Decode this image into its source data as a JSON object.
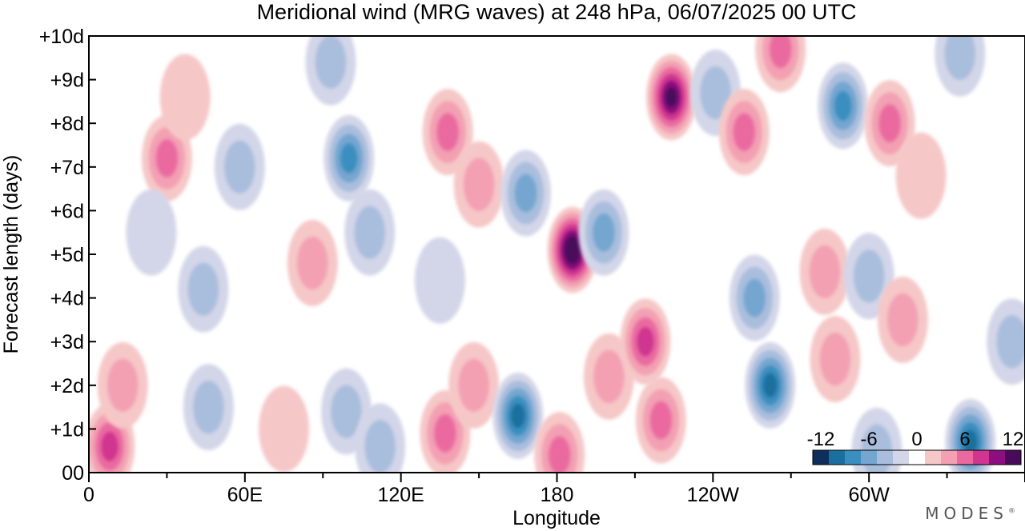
{
  "chart_data": {
    "type": "heatmap",
    "title": "Meridional wind (MRG waves) at  248 hPa,  06/07/2025  00 UTC",
    "xlabel": "Longitude",
    "ylabel": "Forecast length (days)",
    "x_ticks": [
      "0",
      "60E",
      "120E",
      "180",
      "120W",
      "60W"
    ],
    "x_tick_values": [
      0,
      60,
      120,
      180,
      240,
      300
    ],
    "xlim": [
      0,
      360
    ],
    "y_ticks": [
      "00",
      "+1d",
      "+2d",
      "+3d",
      "+4d",
      "+5d",
      "+6d",
      "+7d",
      "+8d",
      "+9d",
      "+10d"
    ],
    "y_tick_values": [
      0,
      1,
      2,
      3,
      4,
      5,
      6,
      7,
      8,
      9,
      10
    ],
    "ylim": [
      0,
      10
    ],
    "colorbar": {
      "tick_labels": [
        "-12",
        "-6",
        "0",
        "6",
        "12"
      ],
      "tick_values": [
        -12,
        -6,
        0,
        6,
        12
      ],
      "levels": [
        -12,
        -10,
        -8,
        -6,
        -4,
        -2,
        0,
        2,
        4,
        6,
        8,
        10,
        12
      ],
      "colors": [
        "#0e2f5c",
        "#1b6f9e",
        "#3a8fc0",
        "#74a6d0",
        "#a9bedd",
        "#d3d6e8",
        "#ffffff",
        "#f6c7c7",
        "#f3a0b3",
        "#ea6aa0",
        "#d03590",
        "#8d0f7f",
        "#4a0a5c"
      ]
    },
    "features": [
      {
        "lon": 8,
        "day": 0.6,
        "value": 7
      },
      {
        "lon": 13,
        "day": 2.0,
        "value": 4
      },
      {
        "lon": 30,
        "day": 7.2,
        "value": 5
      },
      {
        "lon": 37,
        "day": 8.6,
        "value": 2
      },
      {
        "lon": 24,
        "day": 5.5,
        "value": -2
      },
      {
        "lon": 44,
        "day": 4.2,
        "value": -4
      },
      {
        "lon": 46,
        "day": 1.5,
        "value": -3
      },
      {
        "lon": 58,
        "day": 7.0,
        "value": -4
      },
      {
        "lon": 75,
        "day": 1.0,
        "value": 2
      },
      {
        "lon": 86,
        "day": 4.8,
        "value": 3
      },
      {
        "lon": 93,
        "day": 9.4,
        "value": -3
      },
      {
        "lon": 100,
        "day": 7.2,
        "value": -7
      },
      {
        "lon": 108,
        "day": 5.5,
        "value": -4
      },
      {
        "lon": 99,
        "day": 1.4,
        "value": -3
      },
      {
        "lon": 112,
        "day": 0.6,
        "value": -4
      },
      {
        "lon": 138,
        "day": 7.8,
        "value": 5
      },
      {
        "lon": 150,
        "day": 6.6,
        "value": 3
      },
      {
        "lon": 137,
        "day": 0.9,
        "value": 5
      },
      {
        "lon": 148,
        "day": 2.0,
        "value": 3
      },
      {
        "lon": 135,
        "day": 4.4,
        "value": -2
      },
      {
        "lon": 165,
        "day": 1.3,
        "value": -9
      },
      {
        "lon": 168,
        "day": 6.4,
        "value": -5
      },
      {
        "lon": 186,
        "day": 5.1,
        "value": 13
      },
      {
        "lon": 181,
        "day": 0.4,
        "value": 5
      },
      {
        "lon": 198,
        "day": 5.5,
        "value": -5
      },
      {
        "lon": 200,
        "day": 2.2,
        "value": 3
      },
      {
        "lon": 214,
        "day": 3.0,
        "value": 7
      },
      {
        "lon": 220,
        "day": 1.2,
        "value": 6
      },
      {
        "lon": 224,
        "day": 8.6,
        "value": 11
      },
      {
        "lon": 241,
        "day": 8.7,
        "value": -3
      },
      {
        "lon": 252,
        "day": 7.8,
        "value": 6
      },
      {
        "lon": 266,
        "day": 9.7,
        "value": 6
      },
      {
        "lon": 256,
        "day": 4.0,
        "value": -5
      },
      {
        "lon": 262,
        "day": 2.0,
        "value": -9
      },
      {
        "lon": 283,
        "day": 4.6,
        "value": 4
      },
      {
        "lon": 287,
        "day": 2.6,
        "value": 3
      },
      {
        "lon": 290,
        "day": 8.4,
        "value": -7
      },
      {
        "lon": 300,
        "day": 4.5,
        "value": -4
      },
      {
        "lon": 303,
        "day": 0.5,
        "value": -4
      },
      {
        "lon": 308,
        "day": 8.0,
        "value": 6
      },
      {
        "lon": 313,
        "day": 3.5,
        "value": 3
      },
      {
        "lon": 320,
        "day": 6.8,
        "value": 2
      },
      {
        "lon": 335,
        "day": 9.6,
        "value": -3
      },
      {
        "lon": 339,
        "day": 0.7,
        "value": -10
      },
      {
        "lon": 355,
        "day": 3.0,
        "value": -3
      }
    ]
  },
  "branding": {
    "logo_text": "MODES",
    "trademark": "®"
  }
}
